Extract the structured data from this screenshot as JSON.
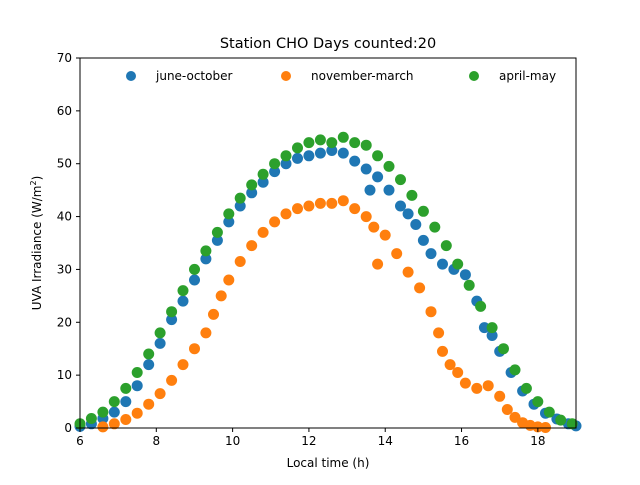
{
  "chart_data": {
    "type": "scatter",
    "title": "Station CHO Days counted:20",
    "xlabel": "Local time (h)",
    "ylabel_main": "UVA Irradiance (W/m",
    "ylabel_sup": "2",
    "ylabel_close": ")",
    "xlim": [
      6,
      19
    ],
    "ylim": [
      0,
      70
    ],
    "xticks": [
      6,
      8,
      10,
      12,
      14,
      16,
      18
    ],
    "yticks": [
      0,
      10,
      20,
      30,
      40,
      50,
      60,
      70
    ],
    "legend_position": "top",
    "series": [
      {
        "name": "june-october",
        "color": "#1f77b4",
        "x": [
          6.0,
          6.3,
          6.6,
          6.9,
          7.2,
          7.5,
          7.8,
          8.1,
          8.4,
          8.7,
          9.0,
          9.3,
          9.6,
          9.9,
          10.2,
          10.5,
          10.8,
          11.1,
          11.4,
          11.7,
          12.0,
          12.3,
          12.6,
          12.9,
          13.2,
          13.5,
          13.6,
          13.8,
          14.1,
          14.4,
          14.6,
          14.8,
          15.0,
          15.2,
          15.5,
          15.8,
          16.1,
          16.4,
          16.6,
          16.8,
          17.0,
          17.3,
          17.6,
          17.9,
          18.2,
          18.5,
          18.8,
          19.0
        ],
        "y": [
          0.3,
          0.8,
          1.8,
          3.0,
          5.0,
          8.0,
          12.0,
          16.0,
          20.5,
          24.0,
          28.0,
          32.0,
          35.5,
          39.0,
          42.0,
          44.5,
          46.5,
          48.5,
          50.0,
          51.0,
          51.5,
          52.0,
          52.5,
          52.0,
          50.5,
          49.0,
          45.0,
          47.5,
          45.0,
          42.0,
          40.5,
          38.5,
          35.5,
          33.0,
          31.0,
          30.0,
          29.0,
          24.0,
          19.0,
          17.5,
          14.5,
          10.5,
          7.0,
          4.5,
          2.8,
          1.7,
          0.8,
          0.4
        ]
      },
      {
        "name": "november-march",
        "color": "#ff7f0e",
        "x": [
          6.6,
          6.9,
          7.2,
          7.5,
          7.8,
          8.1,
          8.4,
          8.7,
          9.0,
          9.3,
          9.5,
          9.7,
          9.9,
          10.2,
          10.5,
          10.8,
          11.1,
          11.4,
          11.7,
          12.0,
          12.3,
          12.6,
          12.9,
          13.2,
          13.5,
          13.7,
          13.8,
          14.0,
          14.3,
          14.6,
          14.9,
          15.2,
          15.4,
          15.5,
          15.7,
          15.9,
          16.1,
          16.4,
          16.7,
          17.0,
          17.2,
          17.4,
          17.6,
          17.8,
          18.0,
          18.2
        ],
        "y": [
          0.2,
          0.8,
          1.6,
          2.8,
          4.5,
          6.5,
          9.0,
          12.0,
          15.0,
          18.0,
          21.5,
          25.0,
          28.0,
          31.5,
          34.5,
          37.0,
          39.0,
          40.5,
          41.5,
          42.0,
          42.5,
          42.5,
          43.0,
          41.5,
          40.0,
          38.0,
          31.0,
          36.5,
          33.0,
          29.5,
          26.5,
          22.0,
          18.0,
          14.5,
          12.0,
          10.5,
          8.5,
          7.5,
          8.0,
          6.0,
          3.5,
          2.0,
          1.0,
          0.5,
          0.2,
          0.1
        ]
      },
      {
        "name": "april-may",
        "color": "#2ca02c",
        "x": [
          6.0,
          6.3,
          6.6,
          6.9,
          7.2,
          7.5,
          7.8,
          8.1,
          8.4,
          8.7,
          9.0,
          9.3,
          9.6,
          9.9,
          10.2,
          10.5,
          10.8,
          11.1,
          11.4,
          11.7,
          12.0,
          12.3,
          12.6,
          12.9,
          13.2,
          13.5,
          13.8,
          14.1,
          14.4,
          14.7,
          15.0,
          15.3,
          15.6,
          15.9,
          16.2,
          16.5,
          16.8,
          17.1,
          17.4,
          17.7,
          18.0,
          18.3,
          18.6,
          18.9
        ],
        "y": [
          0.8,
          1.8,
          3.0,
          5.0,
          7.5,
          10.5,
          14.0,
          18.0,
          22.0,
          26.0,
          30.0,
          33.5,
          37.0,
          40.5,
          43.5,
          46.0,
          48.0,
          50.0,
          51.5,
          53.0,
          54.0,
          54.5,
          54.0,
          55.0,
          54.0,
          53.5,
          51.5,
          49.5,
          47.0,
          44.0,
          41.0,
          38.0,
          34.5,
          31.0,
          27.0,
          23.0,
          19.0,
          15.0,
          11.0,
          7.5,
          5.0,
          3.0,
          1.5,
          0.8
        ]
      }
    ]
  }
}
